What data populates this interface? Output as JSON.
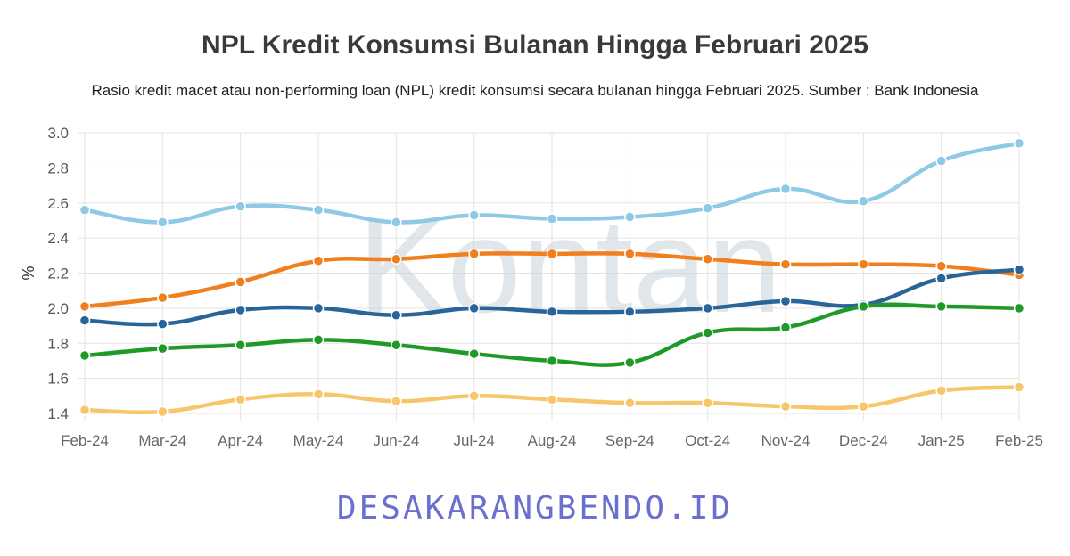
{
  "title": "NPL Kredit Konsumsi Bulanan Hingga Februari 2025",
  "subtitle": "Rasio kredit macet atau non-performing loan (NPL) kredit konsumsi secara bulanan hingga Februari 2025. Sumber : Bank Indonesia",
  "watermark": {
    "chart": "Kontan",
    "footer": "DESAKARANGBENDO.ID"
  },
  "chart_data": {
    "type": "line",
    "title": "NPL Kredit Konsumsi Bulanan Hingga Februari 2025",
    "ylabel": "%",
    "xlabel": "",
    "ylim": [
      1.4,
      3.0
    ],
    "yticks": [
      "3.0",
      "2.8",
      "2.6",
      "2.4",
      "2.2",
      "2.0",
      "1.8",
      "1.6",
      "1.4"
    ],
    "grid": true,
    "categories": [
      "Feb-24",
      "Mar-24",
      "Apr-24",
      "May-24",
      "Jun-24",
      "Jul-24",
      "Aug-24",
      "Sep-24",
      "Oct-24",
      "Nov-24",
      "Dec-24",
      "Jan-25",
      "Feb-25"
    ],
    "series": [
      {
        "color": "#8ecae6",
        "values": [
          2.56,
          2.49,
          2.58,
          2.56,
          2.49,
          2.53,
          2.51,
          2.52,
          2.57,
          2.68,
          2.61,
          2.84,
          2.94
        ]
      },
      {
        "color": "#f07f1e",
        "values": [
          2.01,
          2.06,
          2.15,
          2.27,
          2.28,
          2.31,
          2.31,
          2.31,
          2.28,
          2.25,
          2.25,
          2.24,
          2.19
        ]
      },
      {
        "color": "#2a6599",
        "values": [
          1.93,
          1.91,
          1.99,
          2.0,
          1.96,
          2.0,
          1.98,
          1.98,
          2.0,
          2.04,
          2.02,
          2.17,
          2.22
        ]
      },
      {
        "color": "#1f9a28",
        "values": [
          1.73,
          1.77,
          1.79,
          1.82,
          1.79,
          1.74,
          1.7,
          1.69,
          1.86,
          1.89,
          2.01,
          2.01,
          2.0
        ]
      },
      {
        "color": "#f7c66a",
        "values": [
          1.42,
          1.41,
          1.48,
          1.51,
          1.47,
          1.5,
          1.48,
          1.46,
          1.46,
          1.44,
          1.44,
          1.53,
          1.55
        ]
      }
    ]
  }
}
